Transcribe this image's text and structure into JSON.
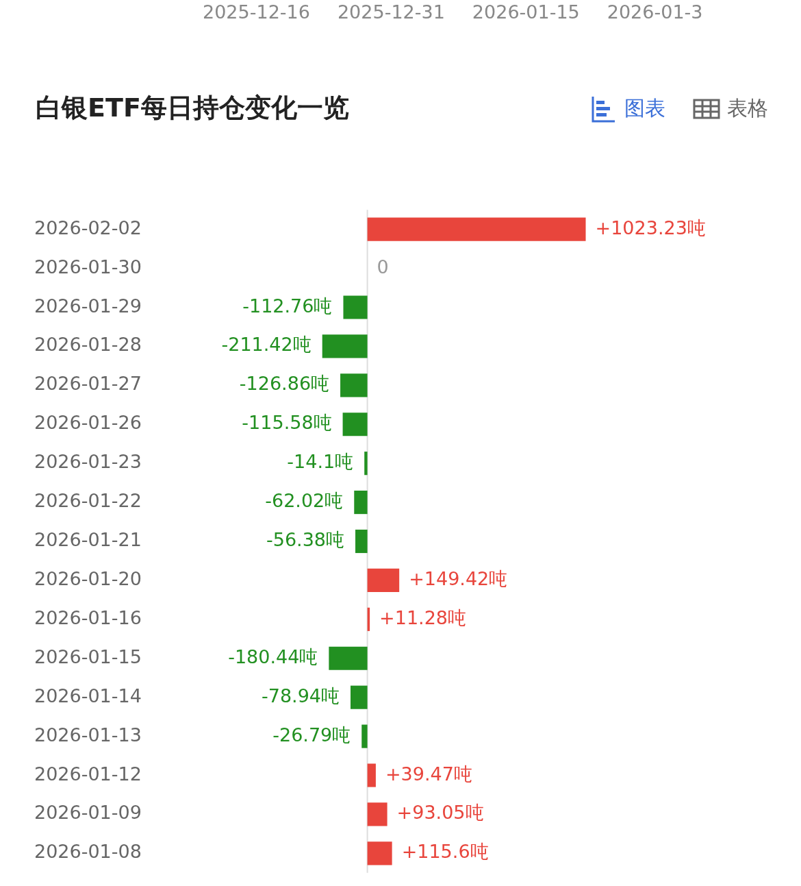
{
  "chart_data": {
    "type": "bar",
    "orientation": "horizontal",
    "title": "白银ETF每日持仓变化一览",
    "annotations": [
      "2025-12-16",
      "2025-12-31",
      "2026-01-15",
      "2026-01-3",
      "图表",
      "表格"
    ],
    "categories": [
      "2026-02-02",
      "2026-01-30",
      "2026-01-29",
      "2026-01-28",
      "2026-01-27",
      "2026-01-26",
      "2026-01-23",
      "2026-01-22",
      "2026-01-21",
      "2026-01-20",
      "2026-01-16",
      "2026-01-15",
      "2026-01-14",
      "2026-01-13",
      "2026-01-12",
      "2026-01-09",
      "2026-01-08"
    ],
    "values": [
      1023.23,
      0,
      -112.76,
      -211.42,
      -126.86,
      -115.58,
      -14.1,
      -62.02,
      -56.38,
      149.42,
      11.28,
      -180.44,
      -78.94,
      -26.79,
      39.47,
      93.05,
      115.6
    ],
    "value_labels": [
      "+1023.23吨",
      "0",
      "-112.76吨",
      "-211.42吨",
      "-126.86吨",
      "-115.58吨",
      "-14.1吨",
      "-62.02吨",
      "-56.38吨",
      "+149.42吨",
      "+11.28吨",
      "-180.44吨",
      "-78.94吨",
      "-26.79吨",
      "+39.47吨",
      "+93.05吨",
      "+115.6吨"
    ],
    "colors": [
      "#e8453c",
      "#999999",
      "#229021",
      "#229021",
      "#229021",
      "#229021",
      "#229021",
      "#229021",
      "#229021",
      "#e8453c",
      "#e8453c",
      "#229021",
      "#229021",
      "#229021",
      "#e8453c",
      "#e8453c",
      "#e8453c"
    ],
    "grid": false,
    "legend": false,
    "tick_labels": "y"
  }
}
